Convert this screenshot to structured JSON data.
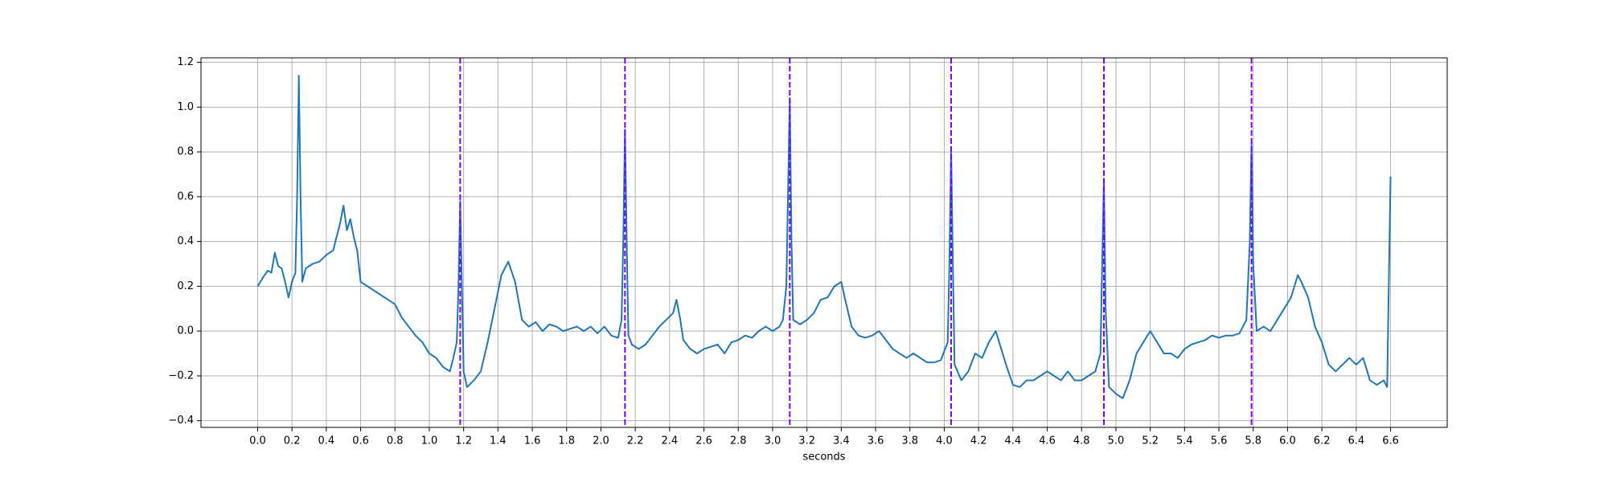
{
  "chart_data": {
    "type": "line",
    "xlabel": "seconds",
    "color": "#1f77b4",
    "grid": true,
    "vlines": [
      1.18,
      2.14,
      3.1,
      4.04,
      4.93,
      5.79
    ],
    "vline_color": "#7f00ff",
    "vline_style": "dashed",
    "xlim": [
      -0.33,
      6.93
    ],
    "ylim": [
      -0.43,
      1.22
    ],
    "xticks": [
      {
        "value": 0,
        "label": "0.0"
      },
      0.2,
      0.4,
      0.6,
      0.8,
      {
        "value": 1,
        "label": "1.0"
      },
      1.2,
      1.4,
      1.6,
      1.8,
      {
        "value": 2,
        "label": "2.0"
      },
      2.2,
      2.4,
      2.6,
      2.8,
      {
        "value": 3,
        "label": "3.0"
      },
      3.2,
      3.4,
      3.6,
      3.8,
      {
        "value": 4,
        "label": "4.0"
      },
      4.2,
      4.4,
      4.6,
      4.8,
      {
        "value": 5,
        "label": "5.0"
      },
      5.2,
      5.4,
      5.6,
      5.8,
      {
        "value": 6,
        "label": "6.0"
      },
      6.2,
      6.4,
      6.6
    ],
    "yticks": [
      {
        "value": -0.4,
        "label": "−0.4"
      },
      {
        "value": -0.2,
        "label": "−0.2"
      },
      {
        "value": 0,
        "label": "0.0"
      },
      0.2,
      0.4,
      0.6,
      0.8,
      {
        "value": 1,
        "label": "1.0"
      },
      1.2
    ],
    "x": [
      0,
      0.04,
      0.06,
      0.08,
      0.1,
      0.12,
      0.14,
      0.16,
      0.18,
      0.2,
      0.22,
      0.23,
      0.24,
      0.25,
      0.26,
      0.28,
      0.32,
      0.36,
      0.4,
      0.44,
      0.48,
      0.5,
      0.52,
      0.54,
      0.56,
      0.58,
      0.6,
      0.64,
      0.68,
      0.72,
      0.76,
      0.8,
      0.84,
      0.88,
      0.92,
      0.96,
      1.0,
      1.04,
      1.08,
      1.12,
      1.14,
      1.16,
      1.17,
      1.18,
      1.19,
      1.2,
      1.22,
      1.26,
      1.3,
      1.34,
      1.38,
      1.42,
      1.46,
      1.5,
      1.54,
      1.58,
      1.62,
      1.66,
      1.7,
      1.74,
      1.78,
      1.82,
      1.86,
      1.9,
      1.94,
      1.98,
      2.02,
      2.06,
      2.1,
      2.12,
      2.13,
      2.14,
      2.15,
      2.16,
      2.18,
      2.22,
      2.26,
      2.3,
      2.34,
      2.38,
      2.42,
      2.44,
      2.46,
      2.48,
      2.52,
      2.56,
      2.6,
      2.64,
      2.68,
      2.72,
      2.76,
      2.8,
      2.84,
      2.88,
      2.92,
      2.96,
      3.0,
      3.04,
      3.06,
      3.08,
      3.1,
      3.11,
      3.12,
      3.16,
      3.2,
      3.24,
      3.28,
      3.32,
      3.36,
      3.4,
      3.42,
      3.46,
      3.5,
      3.54,
      3.58,
      3.62,
      3.66,
      3.7,
      3.74,
      3.78,
      3.82,
      3.86,
      3.9,
      3.94,
      3.98,
      4.02,
      4.03,
      4.04,
      4.05,
      4.06,
      4.1,
      4.14,
      4.18,
      4.22,
      4.26,
      4.3,
      4.32,
      4.36,
      4.4,
      4.44,
      4.48,
      4.52,
      4.56,
      4.6,
      4.64,
      4.68,
      4.72,
      4.76,
      4.8,
      4.84,
      4.88,
      4.91,
      4.92,
      4.93,
      4.94,
      4.96,
      5.0,
      5.04,
      5.08,
      5.12,
      5.16,
      5.2,
      5.24,
      5.28,
      5.32,
      5.36,
      5.4,
      5.44,
      5.48,
      5.52,
      5.56,
      5.6,
      5.64,
      5.68,
      5.72,
      5.76,
      5.78,
      5.79,
      5.8,
      5.82,
      5.86,
      5.9,
      5.94,
      5.98,
      6.02,
      6.06,
      6.08,
      6.12,
      6.16,
      6.2,
      6.24,
      6.28,
      6.32,
      6.36,
      6.4,
      6.44,
      6.48,
      6.52,
      6.56,
      6.58,
      6.6
    ],
    "values": [
      0.2,
      0.25,
      0.27,
      0.26,
      0.35,
      0.29,
      0.28,
      0.22,
      0.15,
      0.22,
      0.26,
      0.6,
      1.14,
      0.6,
      0.22,
      0.28,
      0.3,
      0.31,
      0.34,
      0.36,
      0.48,
      0.56,
      0.45,
      0.5,
      0.42,
      0.36,
      0.22,
      0.2,
      0.18,
      0.16,
      0.14,
      0.12,
      0.06,
      0.02,
      -0.02,
      -0.05,
      -0.1,
      -0.12,
      -0.16,
      -0.18,
      -0.12,
      -0.05,
      0.2,
      0.58,
      0.2,
      -0.18,
      -0.25,
      -0.22,
      -0.18,
      -0.05,
      0.1,
      0.25,
      0.31,
      0.22,
      0.05,
      0.02,
      0.04,
      0.0,
      0.03,
      0.02,
      0.0,
      0.01,
      0.02,
      0.0,
      0.02,
      -0.01,
      0.02,
      -0.02,
      -0.03,
      0.05,
      0.4,
      0.9,
      0.4,
      -0.02,
      -0.06,
      -0.08,
      -0.06,
      -0.02,
      0.02,
      0.05,
      0.08,
      0.14,
      0.06,
      -0.04,
      -0.08,
      -0.1,
      -0.08,
      -0.07,
      -0.06,
      -0.1,
      -0.05,
      -0.04,
      -0.02,
      -0.03,
      0.0,
      0.02,
      0.0,
      0.02,
      0.05,
      0.2,
      1.04,
      0.4,
      0.05,
      0.03,
      0.05,
      0.08,
      0.14,
      0.15,
      0.2,
      0.22,
      0.15,
      0.02,
      -0.02,
      -0.03,
      -0.02,
      0.0,
      -0.04,
      -0.08,
      -0.1,
      -0.12,
      -0.1,
      -0.12,
      -0.14,
      -0.14,
      -0.13,
      -0.05,
      0.3,
      0.82,
      0.3,
      -0.15,
      -0.22,
      -0.18,
      -0.1,
      -0.12,
      -0.05,
      0.0,
      -0.05,
      -0.15,
      -0.24,
      -0.25,
      -0.22,
      -0.22,
      -0.2,
      -0.18,
      -0.2,
      -0.22,
      -0.18,
      -0.22,
      -0.22,
      -0.2,
      -0.18,
      -0.1,
      0.3,
      0.68,
      0.1,
      -0.25,
      -0.28,
      -0.3,
      -0.22,
      -0.1,
      -0.05,
      0.0,
      -0.05,
      -0.1,
      -0.1,
      -0.12,
      -0.08,
      -0.06,
      -0.05,
      -0.04,
      -0.02,
      -0.03,
      -0.02,
      -0.02,
      -0.01,
      0.05,
      0.4,
      0.84,
      0.3,
      0.0,
      0.02,
      0.0,
      0.05,
      0.1,
      0.15,
      0.25,
      0.22,
      0.15,
      0.02,
      -0.05,
      -0.15,
      -0.18,
      -0.15,
      -0.12,
      -0.15,
      -0.12,
      -0.22,
      -0.24,
      -0.22,
      -0.25,
      0.69
    ]
  }
}
